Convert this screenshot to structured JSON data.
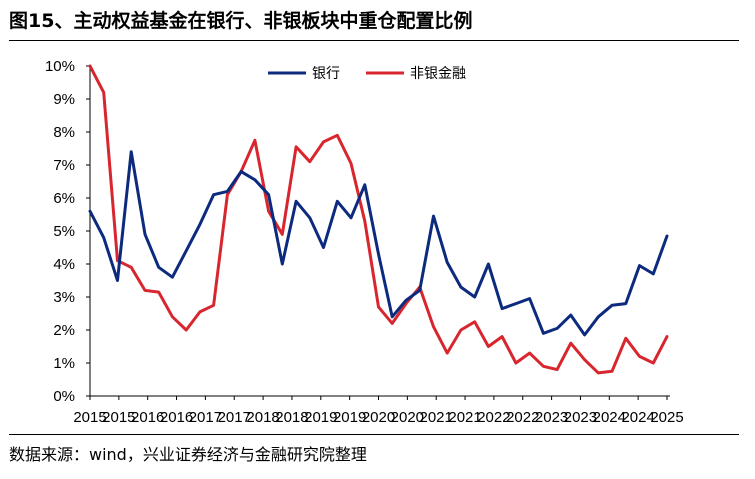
{
  "title": "图15、主动权益基金在银行、非银板块中重仓配置比例",
  "source": "数据来源：wind，兴业证券经济与金融研究院整理",
  "chart_data": {
    "type": "line",
    "title": "图15、主动权益基金在银行、非银板块中重仓配置比例",
    "xlabel": "",
    "ylabel": "",
    "ylim": [
      0,
      10
    ],
    "y_ticks": [
      "0%",
      "1%",
      "2%",
      "3%",
      "4%",
      "5%",
      "6%",
      "7%",
      "8%",
      "9%",
      "10%"
    ],
    "x_tick_labels": [
      "2015",
      "2015",
      "2016",
      "2016",
      "2017",
      "2017",
      "2018",
      "2018",
      "2019",
      "2019",
      "2020",
      "2020",
      "2021",
      "2021",
      "2022",
      "2022",
      "2023",
      "2023",
      "2024",
      "2024",
      "2025"
    ],
    "legend_position": "top-center",
    "grid": false,
    "series": [
      {
        "name": "银行",
        "color": "#0c2a7e",
        "values": [
          5.6,
          4.8,
          3.5,
          7.4,
          4.9,
          3.9,
          3.6,
          4.4,
          5.2,
          6.1,
          6.2,
          6.8,
          6.55,
          6.1,
          4.0,
          5.9,
          5.4,
          4.5,
          5.9,
          5.4,
          6.4,
          4.3,
          2.4,
          2.9,
          3.2,
          5.45,
          4.05,
          3.3,
          3.0,
          4.0,
          2.65,
          2.8,
          2.95,
          1.9,
          2.05,
          2.45,
          1.85,
          2.4,
          2.75,
          2.8,
          3.95,
          3.7,
          4.85
        ]
      },
      {
        "name": "非银金融",
        "color": "#d8262f",
        "values": [
          10.0,
          9.2,
          4.1,
          3.9,
          3.2,
          3.15,
          2.4,
          2.0,
          2.55,
          2.75,
          6.1,
          6.8,
          7.75,
          5.6,
          4.9,
          7.55,
          7.1,
          7.7,
          7.9,
          7.05,
          5.3,
          2.7,
          2.2,
          2.8,
          3.3,
          2.1,
          1.3,
          2.0,
          2.25,
          1.5,
          1.8,
          1.0,
          1.3,
          0.9,
          0.8,
          1.6,
          1.1,
          0.7,
          0.75,
          1.75,
          1.2,
          1.0,
          1.8
        ]
      }
    ]
  }
}
